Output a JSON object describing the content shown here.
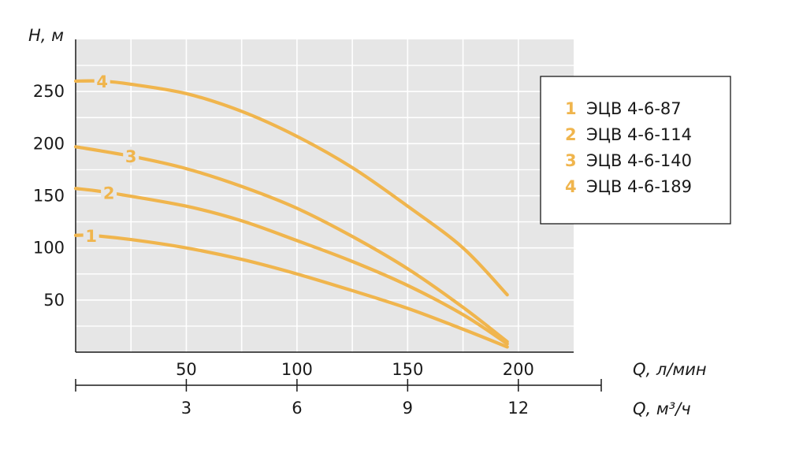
{
  "chart_data": {
    "type": "line",
    "ylabel": "H, м",
    "xlabel": "Q, л/мин",
    "xlabel2": "Q, м³/ч",
    "xlim": [
      0,
      225
    ],
    "ylim": [
      0,
      300
    ],
    "x_ticks": [
      50,
      100,
      150,
      200
    ],
    "x2_ticks": [
      3,
      6,
      9,
      12
    ],
    "y_ticks": [
      50,
      100,
      150,
      200,
      250
    ],
    "grid": true,
    "legend_position": "right",
    "curve_color": "#f0b54d",
    "series": [
      {
        "name": "ЭЦВ 4-6-87",
        "label": "1",
        "x": [
          0,
          7,
          25,
          50,
          75,
          100,
          125,
          150,
          175,
          195
        ],
        "y": [
          112,
          112,
          108,
          100,
          89,
          75,
          59,
          42,
          22,
          5
        ]
      },
      {
        "name": "ЭЦВ 4-6-114",
        "label": "2",
        "x": [
          0,
          15,
          50,
          75,
          100,
          125,
          150,
          175,
          195
        ],
        "y": [
          157,
          153,
          140,
          126,
          107,
          87,
          64,
          36,
          8
        ]
      },
      {
        "name": "ЭЦВ 4-6-140",
        "label": "3",
        "x": [
          0,
          25,
          50,
          75,
          100,
          125,
          150,
          175,
          195
        ],
        "y": [
          197,
          188,
          176,
          159,
          138,
          111,
          80,
          43,
          10
        ]
      },
      {
        "name": "ЭЦВ 4-6-189",
        "label": "4",
        "x": [
          0,
          12,
          25,
          50,
          75,
          100,
          125,
          150,
          175,
          195
        ],
        "y": [
          260,
          260,
          257,
          248,
          231,
          207,
          177,
          140,
          100,
          55
        ]
      }
    ]
  }
}
